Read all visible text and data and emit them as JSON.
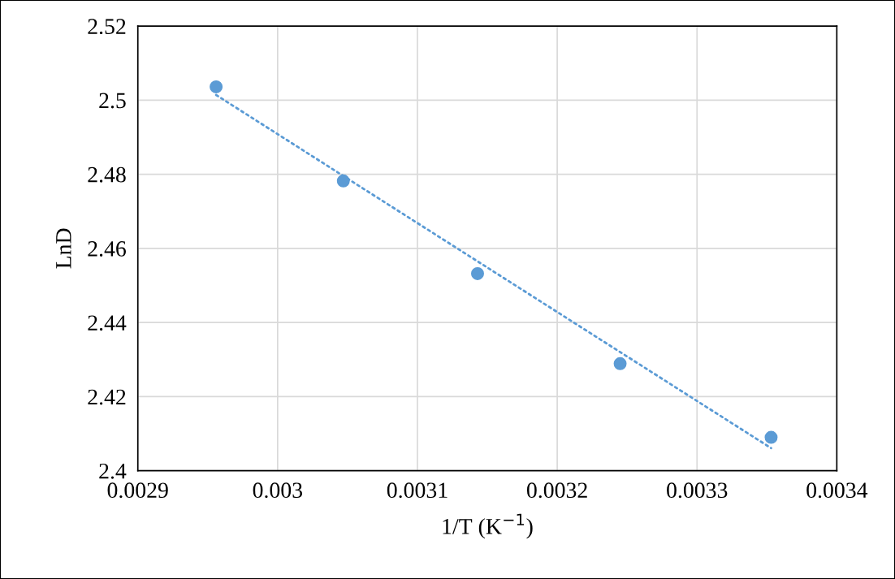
{
  "chart_data": {
    "type": "scatter",
    "xlabel": "1/T (K$^{−1}$)",
    "ylabel": "LnD",
    "series": [
      {
        "color": "#5b9bd5",
        "marker": "circle",
        "x": [
          0.002956,
          0.003047,
          0.003143,
          0.003245,
          0.003353
        ],
        "values": [
          2.5036,
          2.4782,
          2.4532,
          2.4289,
          2.409
        ]
      },
      {
        "type": "line",
        "color": "#5b9bd5",
        "line_style": "dotted",
        "x": [
          0.002956,
          0.003353
        ],
        "values": [
          2.5014,
          2.4061
        ]
      }
    ],
    "xlim": [
      0.0029,
      0.0034
    ],
    "xticks": [
      0.0029,
      0.003,
      0.0031,
      0.0032,
      0.0033,
      0.0034
    ],
    "ylim": [
      2.4,
      2.52
    ],
    "yticks": [
      2.4,
      2.42,
      2.44,
      2.46,
      2.48,
      2.5,
      2.52
    ],
    "grid": true
  }
}
